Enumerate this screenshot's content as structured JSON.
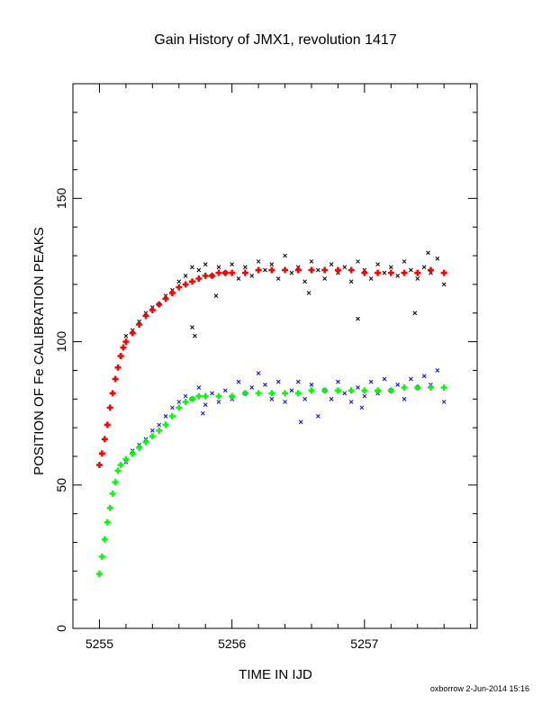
{
  "chart_data": {
    "type": "scatter",
    "title": "Gain History of JMX1, revolution 1417",
    "xlabel": "TIME IN IJD",
    "ylabel": "POSITION OF Fe CALIBRATION PEAKS",
    "xlim": [
      5254.8,
      5257.85
    ],
    "ylim": [
      0,
      190
    ],
    "xticks": [
      5255,
      5256,
      5257
    ],
    "yticks": [
      0,
      50,
      100,
      150
    ],
    "grid": false,
    "series": [
      {
        "marker": "x",
        "color": "#000000",
        "points": [
          [
            5255.2,
            102
          ],
          [
            5255.25,
            104
          ],
          [
            5255.3,
            107
          ],
          [
            5255.35,
            110
          ],
          [
            5255.4,
            112
          ],
          [
            5255.45,
            113
          ],
          [
            5255.5,
            116
          ],
          [
            5255.55,
            118
          ],
          [
            5255.6,
            121
          ],
          [
            5255.65,
            123
          ],
          [
            5255.7,
            126
          ],
          [
            5255.75,
            125
          ],
          [
            5255.8,
            127
          ],
          [
            5255.85,
            123
          ],
          [
            5255.9,
            126
          ],
          [
            5255.95,
            124
          ],
          [
            5256.0,
            127
          ],
          [
            5256.05,
            122
          ],
          [
            5256.1,
            126
          ],
          [
            5256.15,
            123
          ],
          [
            5256.2,
            128
          ],
          [
            5256.25,
            125
          ],
          [
            5256.3,
            127
          ],
          [
            5256.35,
            122
          ],
          [
            5256.4,
            130
          ],
          [
            5256.45,
            124
          ],
          [
            5256.5,
            126
          ],
          [
            5256.55,
            121
          ],
          [
            5256.6,
            128
          ],
          [
            5256.65,
            125
          ],
          [
            5256.7,
            122
          ],
          [
            5256.75,
            127
          ],
          [
            5256.8,
            124
          ],
          [
            5256.85,
            126
          ],
          [
            5256.9,
            121
          ],
          [
            5256.95,
            128
          ],
          [
            5257.0,
            125
          ],
          [
            5257.05,
            122
          ],
          [
            5257.1,
            127
          ],
          [
            5257.15,
            124
          ],
          [
            5257.2,
            126
          ],
          [
            5257.25,
            123
          ],
          [
            5257.3,
            128
          ],
          [
            5257.35,
            125
          ],
          [
            5257.4,
            122
          ],
          [
            5257.45,
            126
          ],
          [
            5257.5,
            124
          ],
          [
            5257.55,
            129
          ],
          [
            5257.6,
            120
          ],
          [
            5255.7,
            105
          ],
          [
            5255.72,
            102
          ],
          [
            5256.95,
            108
          ],
          [
            5257.38,
            110
          ],
          [
            5256.58,
            117
          ],
          [
            5255.88,
            116
          ],
          [
            5257.48,
            131
          ]
        ]
      },
      {
        "marker": "x",
        "color": "#0000ff",
        "points": [
          [
            5255.2,
            58
          ],
          [
            5255.25,
            62
          ],
          [
            5255.3,
            64
          ],
          [
            5255.35,
            66
          ],
          [
            5255.4,
            69
          ],
          [
            5255.45,
            71
          ],
          [
            5255.5,
            74
          ],
          [
            5255.55,
            77
          ],
          [
            5255.6,
            79
          ],
          [
            5255.65,
            81
          ],
          [
            5255.7,
            80
          ],
          [
            5255.75,
            84
          ],
          [
            5255.8,
            78
          ],
          [
            5255.85,
            82
          ],
          [
            5255.9,
            79
          ],
          [
            5255.95,
            83
          ],
          [
            5256.0,
            80
          ],
          [
            5256.05,
            86
          ],
          [
            5256.1,
            82
          ],
          [
            5256.15,
            84
          ],
          [
            5256.2,
            89
          ],
          [
            5256.25,
            85
          ],
          [
            5256.3,
            80
          ],
          [
            5256.35,
            86
          ],
          [
            5256.4,
            79
          ],
          [
            5256.45,
            83
          ],
          [
            5256.5,
            86
          ],
          [
            5256.55,
            80
          ],
          [
            5256.6,
            85
          ],
          [
            5256.65,
            74
          ],
          [
            5256.7,
            83
          ],
          [
            5256.75,
            80
          ],
          [
            5256.8,
            86
          ],
          [
            5256.85,
            82
          ],
          [
            5256.9,
            79
          ],
          [
            5256.95,
            84
          ],
          [
            5257.0,
            81
          ],
          [
            5257.05,
            86
          ],
          [
            5257.1,
            82
          ],
          [
            5257.15,
            87
          ],
          [
            5257.2,
            83
          ],
          [
            5257.25,
            85
          ],
          [
            5257.3,
            80
          ],
          [
            5257.35,
            87
          ],
          [
            5257.4,
            84
          ],
          [
            5257.45,
            88
          ],
          [
            5257.5,
            85
          ],
          [
            5257.55,
            90
          ],
          [
            5257.6,
            79
          ],
          [
            5256.52,
            72
          ],
          [
            5255.78,
            75
          ],
          [
            5256.98,
            77
          ]
        ]
      },
      {
        "marker": "+",
        "color": "#ff0000",
        "points": [
          [
            5255.0,
            57
          ],
          [
            5255.02,
            61
          ],
          [
            5255.04,
            66
          ],
          [
            5255.06,
            71
          ],
          [
            5255.08,
            77
          ],
          [
            5255.1,
            82
          ],
          [
            5255.12,
            87
          ],
          [
            5255.14,
            91
          ],
          [
            5255.16,
            95
          ],
          [
            5255.18,
            98
          ],
          [
            5255.2,
            100
          ],
          [
            5255.25,
            103
          ],
          [
            5255.3,
            106
          ],
          [
            5255.35,
            109
          ],
          [
            5255.4,
            111
          ],
          [
            5255.45,
            113
          ],
          [
            5255.5,
            115
          ],
          [
            5255.55,
            117
          ],
          [
            5255.6,
            119
          ],
          [
            5255.65,
            120
          ],
          [
            5255.7,
            121
          ],
          [
            5255.75,
            122
          ],
          [
            5255.8,
            123
          ],
          [
            5255.85,
            123
          ],
          [
            5255.9,
            124
          ],
          [
            5255.95,
            124
          ],
          [
            5256.0,
            124
          ],
          [
            5256.1,
            124
          ],
          [
            5256.2,
            125
          ],
          [
            5256.3,
            125
          ],
          [
            5256.4,
            125
          ],
          [
            5256.5,
            125
          ],
          [
            5256.6,
            125
          ],
          [
            5256.7,
            125
          ],
          [
            5256.8,
            125
          ],
          [
            5256.9,
            125
          ],
          [
            5257.0,
            124
          ],
          [
            5257.1,
            124
          ],
          [
            5257.2,
            124
          ],
          [
            5257.3,
            124
          ],
          [
            5257.4,
            124
          ],
          [
            5257.5,
            125
          ],
          [
            5257.6,
            124
          ]
        ]
      },
      {
        "marker": "+",
        "color": "#00ff00",
        "points": [
          [
            5255.0,
            19
          ],
          [
            5255.02,
            25
          ],
          [
            5255.04,
            31
          ],
          [
            5255.06,
            37
          ],
          [
            5255.08,
            42
          ],
          [
            5255.1,
            47
          ],
          [
            5255.12,
            51
          ],
          [
            5255.14,
            55
          ],
          [
            5255.16,
            57
          ],
          [
            5255.2,
            59
          ],
          [
            5255.25,
            61
          ],
          [
            5255.3,
            63
          ],
          [
            5255.35,
            65
          ],
          [
            5255.4,
            67
          ],
          [
            5255.45,
            69
          ],
          [
            5255.5,
            71
          ],
          [
            5255.55,
            74
          ],
          [
            5255.6,
            77
          ],
          [
            5255.65,
            79
          ],
          [
            5255.7,
            80
          ],
          [
            5255.75,
            81
          ],
          [
            5255.8,
            81
          ],
          [
            5255.9,
            81
          ],
          [
            5256.0,
            81
          ],
          [
            5256.1,
            82
          ],
          [
            5256.2,
            82
          ],
          [
            5256.3,
            82
          ],
          [
            5256.4,
            82
          ],
          [
            5256.5,
            82
          ],
          [
            5256.6,
            83
          ],
          [
            5256.7,
            83
          ],
          [
            5256.8,
            83
          ],
          [
            5256.9,
            83
          ],
          [
            5257.0,
            83
          ],
          [
            5257.1,
            83
          ],
          [
            5257.2,
            83
          ],
          [
            5257.3,
            84
          ],
          [
            5257.4,
            84
          ],
          [
            5257.5,
            84
          ],
          [
            5257.6,
            84
          ]
        ]
      }
    ]
  },
  "footer": {
    "author_stamp": "oxborrow  2-Jun-2014 15:16"
  }
}
